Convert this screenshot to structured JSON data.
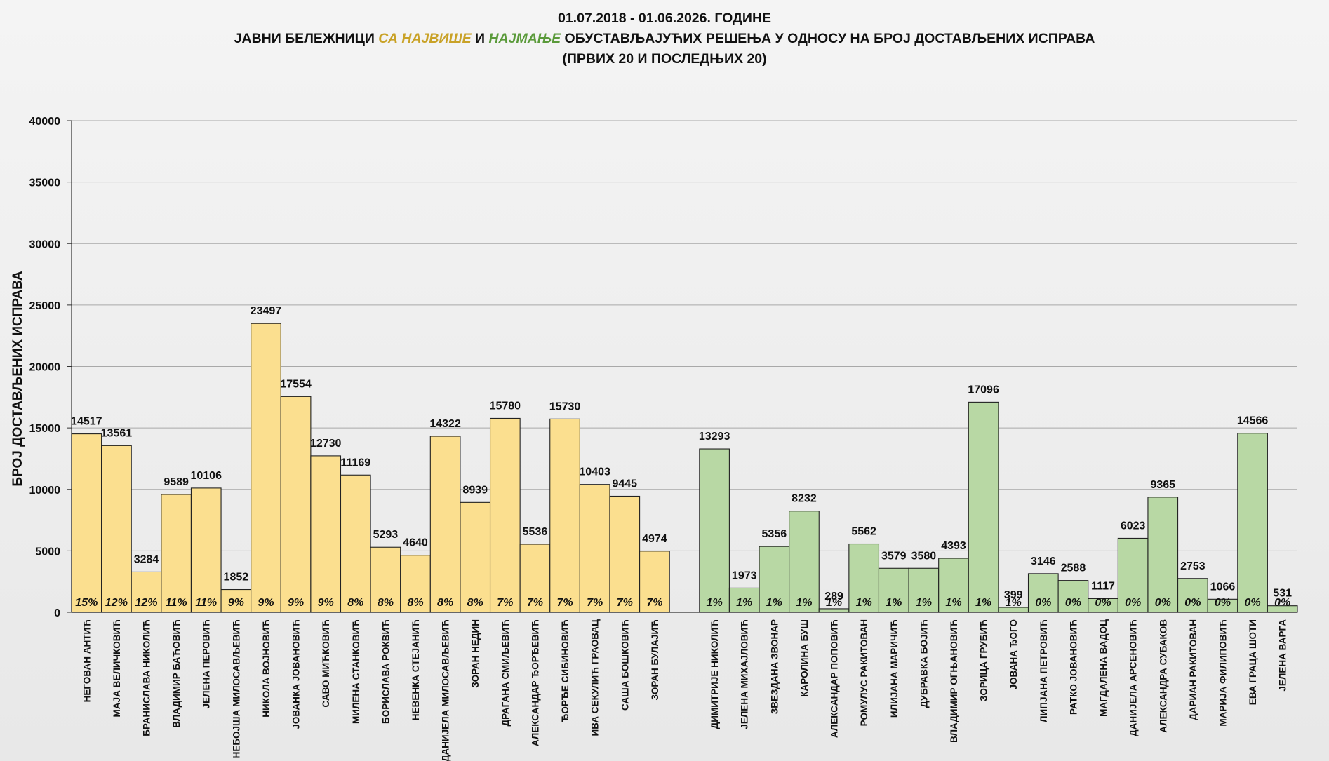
{
  "header": {
    "line1": "01.07.2018 - 01.06.2026. ГОДИНЕ",
    "line2_a": "ЈАВНИ БЕЛЕЖНИЦИ ",
    "line2_b": "СА НАЈВИШЕ",
    "line2_c": " И ",
    "line2_d": "НАЈМАЊЕ",
    "line2_e": " ОБУСТАВЉАЈУЋИХ РЕШЕЊА У ОДНОСУ НА БРОЈ ДОСТАВЉЕНИХ ИСПРАВА",
    "line3": "(ПРВИХ 20 И ПОСЛЕДЊИХ 20)"
  },
  "colors": {
    "top_fill": "#fbdf8f",
    "bottom_fill": "#b8d8a4",
    "bar_stroke": "#222222",
    "grid": "#a8a8a8",
    "title_gold": "#c9a227",
    "title_green": "#5a9a3a"
  },
  "chart_data": {
    "type": "bar",
    "ylabel": "БРОЈ ДОСТАВЉЕНИХ ИСПРАВА",
    "ylim": [
      0,
      40000
    ],
    "yticks": [
      0,
      5000,
      10000,
      15000,
      20000,
      25000,
      30000,
      35000,
      40000
    ],
    "grid": true,
    "groups": [
      {
        "name": "top",
        "categories": [
          "НЕГОВАН АНТИЋ",
          "МАЈА ВЕЛИЧКОВИЋ",
          "БРАНИСЛАВА НИКОЛИЋ",
          "ВЛАДИМИР БАЋОВИЋ",
          "ЈЕЛЕНА ПЕРОВИЋ",
          "НЕБОЈША МИЛОСАВЉЕВИЋ",
          "НИКОЛА ВОЈНОВИЋ",
          "ЈОВАНКА ЈОВАНОВИЋ",
          "САВО МИЋКОВИЋ",
          "МИЛЕНА СТАНКОВИЋ",
          "БОРИСЛАВА РОКВИЋ",
          "НЕВЕНКА СТЕЈАНИЋ",
          "ДАНИЈЕЛА МИЛОСАВЉЕВИЋ",
          "ЗОРАН НЕДИН",
          "ДРАГАНА СМИЉЕВИЋ",
          "АЛЕКСАНДАР ЂОРЂЕВИЋ",
          "ЂОРЂЕ СИБИНОВИЋ",
          "ИВА СЕКУЛИЋ ГРАОВАЦ",
          "САША БОШКОВИЋ",
          "ЗОРАН БУЛАЈИЋ"
        ],
        "values": [
          14517,
          13561,
          3284,
          9589,
          10106,
          1852,
          23497,
          17554,
          12730,
          11169,
          5293,
          4640,
          14322,
          8939,
          15780,
          5536,
          15730,
          10403,
          9445,
          4974
        ],
        "percents": [
          "15%",
          "12%",
          "12%",
          "11%",
          "11%",
          "9%",
          "9%",
          "9%",
          "9%",
          "8%",
          "8%",
          "8%",
          "8%",
          "8%",
          "7%",
          "7%",
          "7%",
          "7%",
          "7%",
          "7%"
        ]
      },
      {
        "name": "bottom",
        "categories": [
          "ДИМИТРИЈЕ НИКОЛИЋ",
          "ЈЕЛЕНА МИХАЈЛОВИЋ",
          "ЗВЕЗДАНА ЗВОНАР",
          "КАРОЛИНА БУШ",
          "АЛЕКСАНДАР ПОПОВИЋ",
          "РОМУЛУС РАКИТОВАН",
          "ИЛИЈАНА МАРИЧИЋ",
          "ДУБРАВКА БОЈИЋ",
          "ВЛАДИМИР ОГЊАНОВИЋ",
          "ЗОРИЦА ГРУБИЋ",
          "ЈОВАНА ЂОГО",
          "ЛИПЈАНА ПЕТРОВИЋ",
          "РАТКО ЈОВАНОВИЋ",
          "МАГДАЛЕНА ВАДОЦ",
          "ДАНИЈЕЛА АРСЕНОВИЋ",
          "АЛЕКСАНДРА СУБАКОВ",
          "ДАРИАН РАКИТОВАН",
          "МАРИЈА ФИЛИПОВИЋ",
          "ЕВА ГРАЦА ШОТИ",
          "ЈЕЛЕНА ВАРГА"
        ],
        "values": [
          13293,
          1973,
          5356,
          8232,
          289,
          5562,
          3579,
          3580,
          4393,
          17096,
          399,
          3146,
          2588,
          1117,
          6023,
          9365,
          2753,
          1066,
          14566,
          531
        ],
        "percents": [
          "1%",
          "1%",
          "1%",
          "1%",
          "1%",
          "1%",
          "1%",
          "1%",
          "1%",
          "1%",
          "1%",
          "0%",
          "0%",
          "0%",
          "0%",
          "0%",
          "0%",
          "0%",
          "0%",
          "0%"
        ]
      }
    ]
  }
}
